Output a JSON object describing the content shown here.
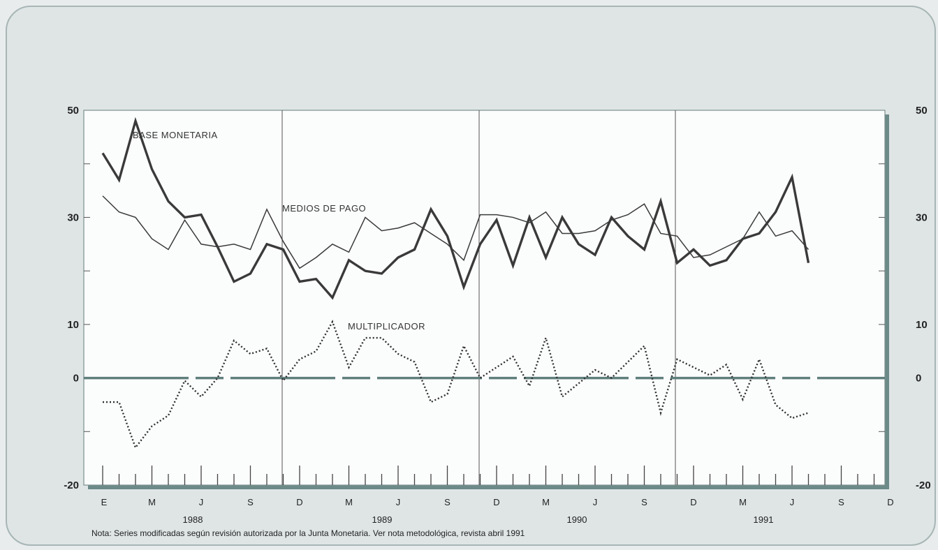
{
  "chart_data": {
    "type": "line",
    "title": "",
    "xlabel": "",
    "ylabel": "",
    "ylim": [
      -20,
      50
    ],
    "y_ticks_left": [
      "50",
      "30",
      "10",
      "0",
      "-20"
    ],
    "y_ticks_right": [
      "50",
      "30",
      "10",
      "0",
      "-20"
    ],
    "month_labels": [
      "E",
      "M",
      "J",
      "S",
      "D",
      "M",
      "J",
      "S",
      "D",
      "M",
      "J",
      "S",
      "D",
      "M",
      "J",
      "S",
      "D"
    ],
    "year_labels": [
      "1988",
      "1989",
      "1990",
      "1991"
    ],
    "series": [
      {
        "name": "BASE MONETARIA",
        "x": [
          "1988-01",
          "1988-02",
          "1988-03",
          "1988-04",
          "1988-05",
          "1988-06",
          "1988-07",
          "1988-08",
          "1988-09",
          "1988-10",
          "1988-11",
          "1988-12",
          "1989-01",
          "1989-02",
          "1989-03",
          "1989-04",
          "1989-05",
          "1989-06",
          "1989-07",
          "1989-08",
          "1989-09",
          "1989-10",
          "1989-11",
          "1989-12",
          "1990-01",
          "1990-02",
          "1990-03",
          "1990-04",
          "1990-05",
          "1990-06",
          "1990-07",
          "1990-08",
          "1990-09",
          "1990-10",
          "1990-11",
          "1990-12",
          "1991-01",
          "1991-02",
          "1991-03",
          "1991-04",
          "1991-05",
          "1991-06",
          "1991-07",
          "1991-08"
        ],
        "values": [
          42,
          37,
          48,
          39,
          33,
          30,
          30.5,
          24.5,
          18,
          19.5,
          25,
          24,
          18,
          18.5,
          15,
          22,
          20,
          19.5,
          22.5,
          24,
          31.5,
          26.5,
          17,
          25,
          29.5,
          21,
          30,
          22.5,
          30,
          25,
          23,
          30,
          26.5,
          24,
          33,
          21.5,
          24,
          21,
          22,
          26,
          27,
          31,
          37.5,
          21.5
        ]
      },
      {
        "name": "MEDIOS DE PAGO",
        "x": [
          "1988-01",
          "1988-02",
          "1988-03",
          "1988-04",
          "1988-05",
          "1988-06",
          "1988-07",
          "1988-08",
          "1988-09",
          "1988-10",
          "1988-11",
          "1988-12",
          "1989-01",
          "1989-02",
          "1989-03",
          "1989-04",
          "1989-05",
          "1989-06",
          "1989-07",
          "1989-08",
          "1989-09",
          "1989-10",
          "1989-11",
          "1989-12",
          "1990-01",
          "1990-02",
          "1990-03",
          "1990-04",
          "1990-05",
          "1990-06",
          "1990-07",
          "1990-08",
          "1990-09",
          "1990-10",
          "1990-11",
          "1990-12",
          "1991-01",
          "1991-02",
          "1991-03",
          "1991-04",
          "1991-05",
          "1991-06",
          "1991-07",
          "1991-08"
        ],
        "values": [
          34,
          31,
          30,
          26,
          24,
          29.5,
          25,
          24.5,
          25,
          24,
          31.5,
          25.5,
          20.5,
          22.5,
          25,
          23.5,
          30,
          27.5,
          28,
          29,
          27,
          25,
          22,
          30.5,
          30.5,
          30,
          29,
          31,
          27,
          27,
          27.5,
          29.5,
          30.5,
          32.5,
          27,
          26.5,
          22.5,
          23,
          24.5,
          26,
          31,
          26.5,
          27.5,
          24
        ]
      },
      {
        "name": "MULTIPLICADOR",
        "x": [
          "1988-01",
          "1988-02",
          "1988-03",
          "1988-04",
          "1988-05",
          "1988-06",
          "1988-07",
          "1988-08",
          "1988-09",
          "1988-10",
          "1988-11",
          "1988-12",
          "1989-01",
          "1989-02",
          "1989-03",
          "1989-04",
          "1989-05",
          "1989-06",
          "1989-07",
          "1989-08",
          "1989-09",
          "1989-10",
          "1989-11",
          "1989-12",
          "1990-01",
          "1990-02",
          "1990-03",
          "1990-04",
          "1990-05",
          "1990-06",
          "1990-07",
          "1990-08",
          "1990-09",
          "1990-10",
          "1990-11",
          "1990-12",
          "1991-01",
          "1991-02",
          "1991-03",
          "1991-04",
          "1991-05",
          "1991-06",
          "1991-07",
          "1991-08"
        ],
        "values": [
          -4.5,
          -4.5,
          -13,
          -9,
          -7,
          -0.5,
          -3.5,
          0,
          7,
          4.5,
          5.5,
          -0.5,
          3.5,
          5,
          10.5,
          2,
          7.5,
          7.5,
          4.5,
          3,
          -4.5,
          -3,
          6,
          0,
          2,
          4,
          -1.5,
          7.5,
          -3.5,
          -1,
          1.5,
          0,
          3,
          6,
          -6.5,
          3.5,
          2,
          0.5,
          2.5,
          -4,
          3.5,
          -5,
          -7.5,
          -6.5
        ]
      }
    ],
    "zero_line": 0,
    "grid": true,
    "note": "Nota: Series modificadas según revisión autorizada por la Junta Monetaria. Ver nota metodológica, revista abril 1991",
    "colors": {
      "base": "#3a3a3a",
      "medios": "#3a3a3a",
      "multiplicador": "#2f2f2f",
      "zero_line": "#5f7f7d",
      "frame_shadow": "#6b8a88"
    }
  }
}
